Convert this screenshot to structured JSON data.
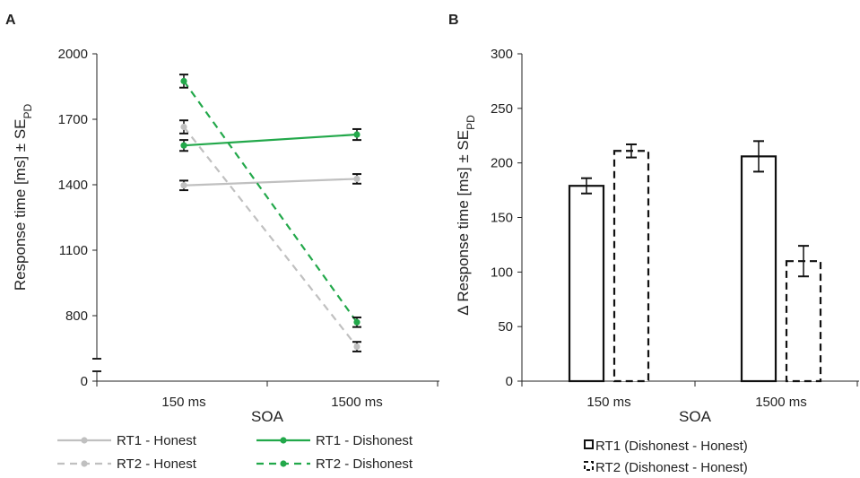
{
  "chart_data": [
    {
      "panel": "A",
      "type": "line",
      "xlabel": "SOA",
      "ylabel_main": "Response time [ms] ± SE",
      "ylabel_sub": "PD",
      "categories": [
        "150 ms",
        "1500 ms"
      ],
      "y_ticks": [
        "0",
        "800",
        "1100",
        "1400",
        "1700",
        "2000"
      ],
      "ylim": [
        500,
        2000
      ],
      "y_axis_break": true,
      "grid": false,
      "legend_position": "bottom",
      "series": [
        {
          "name": "RT1 - Honest",
          "color": "#c0c0c0",
          "dashed": false,
          "values": [
            1397,
            1427
          ],
          "errors": [
            22,
            22
          ]
        },
        {
          "name": "RT1 - Dishonest",
          "color": "#22a84a",
          "dashed": false,
          "values": [
            1580,
            1630
          ],
          "errors": [
            25,
            25
          ]
        },
        {
          "name": "RT2 - Honest",
          "color": "#c0c0c0",
          "dashed": true,
          "values": [
            1665,
            658
          ],
          "errors": [
            30,
            22
          ]
        },
        {
          "name": "RT2 - Dishonest",
          "color": "#22a84a",
          "dashed": true,
          "values": [
            1875,
            770
          ],
          "errors": [
            30,
            22
          ]
        }
      ]
    },
    {
      "panel": "B",
      "type": "bar",
      "xlabel": "SOA",
      "ylabel_main": "Δ Response time [ms] ± SE",
      "ylabel_sub": "PD",
      "categories": [
        "150 ms",
        "1500 ms"
      ],
      "y_ticks": [
        "0",
        "50",
        "100",
        "150",
        "200",
        "250",
        "300"
      ],
      "ylim": [
        0,
        300
      ],
      "grid": false,
      "legend_position": "bottom",
      "series": [
        {
          "name": "RT1 (Dishonest - Honest)",
          "dashed": false,
          "values": [
            179,
            206
          ],
          "errors": [
            7,
            14
          ]
        },
        {
          "name": "RT2 (Dishonest - Honest)",
          "dashed": true,
          "values": [
            211,
            110
          ],
          "errors": [
            6,
            14
          ]
        }
      ]
    }
  ]
}
